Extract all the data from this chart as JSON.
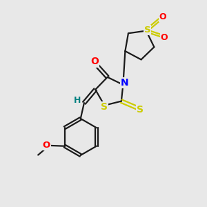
{
  "bg_color": "#e8e8e8",
  "bond_color": "#1a1a1a",
  "S_color": "#cccc00",
  "N_color": "#0000ff",
  "O_color": "#ff0000",
  "H_color": "#008080",
  "lw": 1.6,
  "dbo": 0.055,
  "xlim": [
    -2.2,
    3.2
  ],
  "ylim": [
    -4.2,
    2.8
  ]
}
